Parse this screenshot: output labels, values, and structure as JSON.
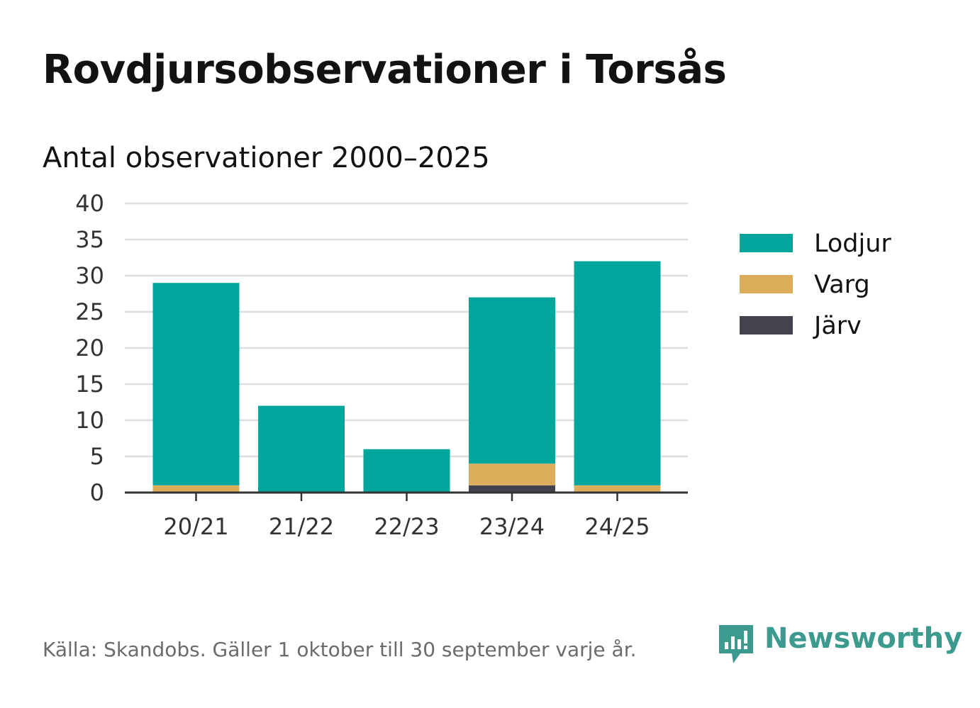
{
  "title": "Rovdjursobservationer i Torsås",
  "subtitle": "Antal observationer 2000–2025",
  "source": "Källa: Skandobs. Gäller 1 oktober till 30 september varje år.",
  "brand": "Newsworthy",
  "colors": {
    "Lodjur": "#00a59b",
    "Varg": "#dcae5b",
    "Järv": "#44424f",
    "grid": "#dddddd",
    "axis": "#333333",
    "brand": "#3d9a8f"
  },
  "chart_data": {
    "type": "bar",
    "stacked": true,
    "categories": [
      "20/21",
      "21/22",
      "22/23",
      "23/24",
      "24/25"
    ],
    "series": [
      {
        "name": "Järv",
        "values": [
          0,
          0,
          0,
          1,
          0
        ]
      },
      {
        "name": "Varg",
        "values": [
          1,
          0,
          0,
          3,
          1
        ]
      },
      {
        "name": "Lodjur",
        "values": [
          28,
          12,
          6,
          23,
          31
        ]
      }
    ],
    "legend_order": [
      "Lodjur",
      "Varg",
      "Järv"
    ],
    "ylim": [
      0,
      40
    ],
    "yticks": [
      0,
      5,
      10,
      15,
      20,
      25,
      30,
      35,
      40
    ],
    "grid": true,
    "legend_position": "right"
  }
}
